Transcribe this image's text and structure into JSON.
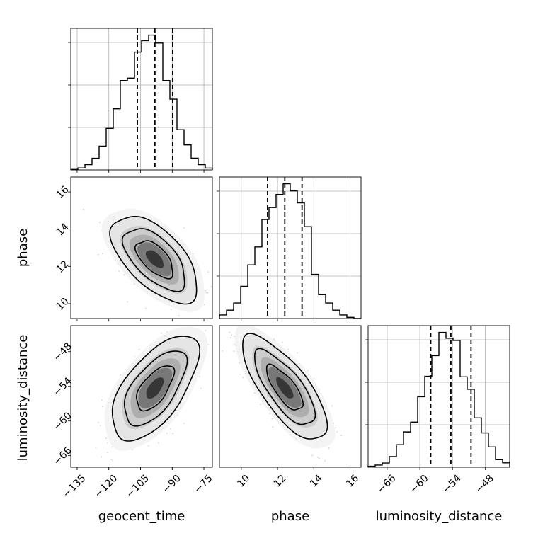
{
  "chart_data": {
    "type": "corner",
    "parameters": [
      "geocent_time",
      "phase",
      "luminosity_distance"
    ],
    "quantile_lines": {
      "geocent_time": [
        -106.5,
        -98.2,
        -89.8
      ],
      "phase": [
        11.45,
        12.4,
        13.35
      ],
      "luminosity_distance": [
        -58.0,
        -54.3,
        -50.6
      ]
    },
    "geocent_time": {
      "xlim": [
        -138,
        -71
      ],
      "ticks": [
        -135,
        -120,
        -105,
        -90,
        -75
      ],
      "tick_labels": [
        "−135",
        "−120",
        "−105",
        "−90",
        "−75"
      ],
      "hist_bin_edges": [
        -138,
        -134.65,
        -131.3,
        -127.95,
        -124.6,
        -121.25,
        -117.9,
        -114.55,
        -111.2,
        -107.85,
        -104.5,
        -101.15,
        -97.8,
        -94.45,
        -91.1,
        -87.75,
        -84.4,
        -81.05,
        -77.7,
        -74.35,
        -71
      ],
      "hist_counts": [
        0.3,
        1.3,
        3.5,
        7.7,
        15.8,
        27.6,
        40.6,
        59.4,
        61,
        78.3,
        85.9,
        89.6,
        84.3,
        59.4,
        47,
        26.7,
        16.6,
        7.8,
        3.5,
        1.2
      ]
    },
    "phase": {
      "xlim": [
        8.8,
        16.6
      ],
      "ticks": [
        10,
        12,
        14,
        16
      ],
      "tick_labels": [
        "10",
        "12",
        "14",
        "16"
      ],
      "ylim_2d": [
        9.2,
        16.8
      ],
      "y_ticks": [
        10,
        12,
        14,
        16
      ],
      "y_tick_labels": [
        "10",
        "12",
        "14",
        "16"
      ],
      "hist_bin_edges": [
        8.8,
        9.19,
        9.58,
        9.97,
        10.36,
        10.75,
        11.14,
        11.53,
        11.92,
        12.31,
        12.7,
        13.09,
        13.48,
        13.87,
        14.26,
        14.65,
        15.04,
        15.43,
        15.82,
        16.21,
        16.6
      ],
      "hist_counts": [
        3,
        7,
        13,
        27,
        45,
        60,
        83,
        93,
        104,
        113,
        107,
        97,
        77,
        37,
        20,
        13,
        7,
        3,
        1,
        0
      ]
    },
    "luminosity_distance": {
      "xlim": [
        -69.5,
        -43.5
      ],
      "ticks": [
        -66,
        -60,
        -54,
        -48
      ],
      "tick_labels": [
        "−66",
        "−60",
        "−54",
        "−48"
      ],
      "ylim_2d": [
        -68,
        -43.5
      ],
      "y_ticks": [
        -66,
        -60,
        -54,
        -48
      ],
      "y_tick_labels": [
        "−66",
        "−60",
        "−54",
        "−48"
      ],
      "hist_bin_edges": [
        -69.5,
        -68.2,
        -66.9,
        -65.6,
        -64.3,
        -63,
        -61.7,
        -60.4,
        -59.1,
        -57.8,
        -56.5,
        -55.2,
        -53.9,
        -52.6,
        -51.3,
        -50,
        -48.7,
        -47.4,
        -46.1,
        -44.8,
        -43.5
      ],
      "hist_counts": [
        0.6,
        1.3,
        2.5,
        6.3,
        13.3,
        20.9,
        26.7,
        41.7,
        53.8,
        66,
        79.8,
        76.3,
        75,
        53.5,
        46.1,
        29.2,
        20.3,
        12,
        4.5,
        2.6
      ]
    },
    "correlations": {
      "phase_vs_geocent_time": -0.6,
      "luminosity_distance_vs_geocent_time": 0.62,
      "luminosity_distance_vs_phase": -0.75
    },
    "grid": true
  }
}
